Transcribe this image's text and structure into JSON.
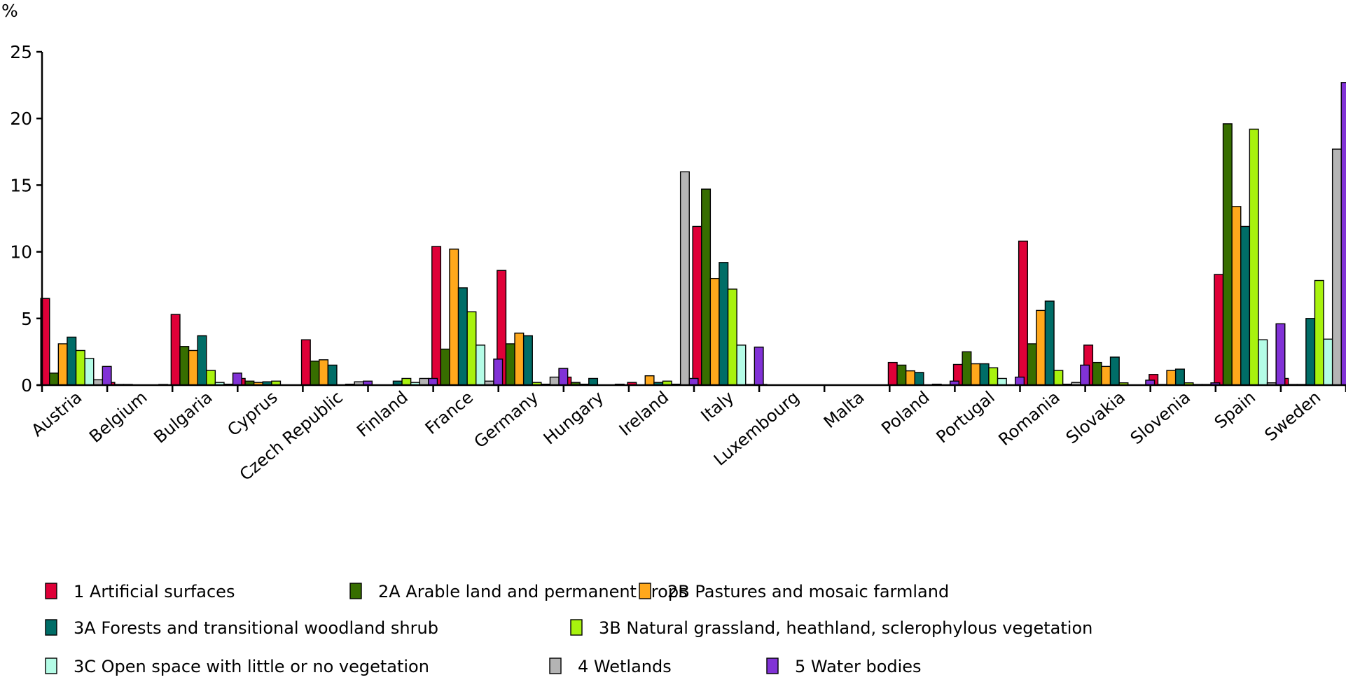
{
  "chart_data": {
    "type": "bar",
    "ylabel": "%",
    "ylim": [
      0,
      25
    ],
    "yticks": [
      "0",
      "5",
      "10",
      "15",
      "20",
      "25"
    ],
    "grid": false,
    "legend_position": "bottom",
    "categories": [
      "Austria",
      "Belgium",
      "Bulgaria",
      "Cyprus",
      "Czech Republic",
      "Finland",
      "France",
      "Germany",
      "Hungary",
      "Ireland",
      "Italy",
      "Luxembourg",
      "Malta",
      "Poland",
      "Portugal",
      "Romania",
      "Slovakia",
      "Slovenia",
      "Spain",
      "Sweden"
    ],
    "series": [
      {
        "name": "1 Artificial surfaces",
        "color": "#df0038",
        "values": [
          6.5,
          0.2,
          5.3,
          0.5,
          3.4,
          0,
          10.4,
          8.6,
          0.6,
          0.2,
          11.9,
          0.05,
          0,
          1.7,
          1.55,
          10.8,
          3.0,
          0.8,
          8.3,
          0.5
        ]
      },
      {
        "name": "2A Arable land and permanent crops",
        "color": "#376e00",
        "values": [
          0.9,
          0.05,
          2.9,
          0.3,
          1.8,
          0,
          2.7,
          3.1,
          0.2,
          0,
          14.7,
          0,
          0,
          1.5,
          2.5,
          3.1,
          1.7,
          0.05,
          19.6,
          0.05
        ]
      },
      {
        "name": "2B Pastures and mosaic farmland",
        "color": "#ffa81c",
        "values": [
          3.1,
          0.05,
          2.6,
          0.2,
          1.9,
          0,
          10.2,
          3.9,
          0.07,
          0.7,
          8.0,
          0,
          0,
          1.07,
          1.6,
          5.6,
          1.4,
          1.1,
          13.4,
          0.05
        ]
      },
      {
        "name": "3A Forests and transitional woodland shrub",
        "color": "#006d67",
        "values": [
          3.6,
          0,
          3.7,
          0.25,
          1.5,
          0.3,
          7.3,
          3.7,
          0.5,
          0.2,
          9.2,
          0,
          0,
          0.95,
          1.6,
          6.3,
          2.1,
          1.2,
          11.9,
          5.0
        ]
      },
      {
        "name": "3B Natural grassland, heathland, sclerophylous vegetation",
        "color": "#a8f20e",
        "values": [
          2.6,
          0,
          1.1,
          0.3,
          0,
          0.5,
          5.5,
          0.2,
          0,
          0.3,
          7.2,
          0,
          0,
          0,
          1.3,
          1.1,
          0.17,
          0.17,
          19.2,
          7.85
        ]
      },
      {
        "name": "3C Open space with little or no vegetation",
        "color": "#b4fce6",
        "values": [
          2.0,
          0,
          0.2,
          0,
          0.07,
          0.2,
          3.0,
          0.07,
          0,
          0.07,
          3.0,
          0,
          0,
          0.07,
          0.5,
          0.07,
          0,
          0.05,
          3.4,
          3.45
        ]
      },
      {
        "name": "4 Wetlands",
        "color": "#b4b4b4",
        "values": [
          0.4,
          0.05,
          0.07,
          0,
          0.25,
          0.5,
          0.3,
          0.6,
          0.07,
          16.0,
          0.05,
          0,
          0,
          0,
          0,
          0.2,
          0,
          0.05,
          0.17,
          17.7
        ]
      },
      {
        "name": "5 Water bodies",
        "color": "#8132d6",
        "values": [
          1.4,
          0,
          0.9,
          0,
          0.3,
          0.5,
          1.95,
          1.25,
          0,
          0.5,
          2.85,
          0,
          0,
          0.3,
          0.6,
          1.5,
          0.37,
          0.17,
          4.6,
          22.7
        ]
      }
    ]
  }
}
